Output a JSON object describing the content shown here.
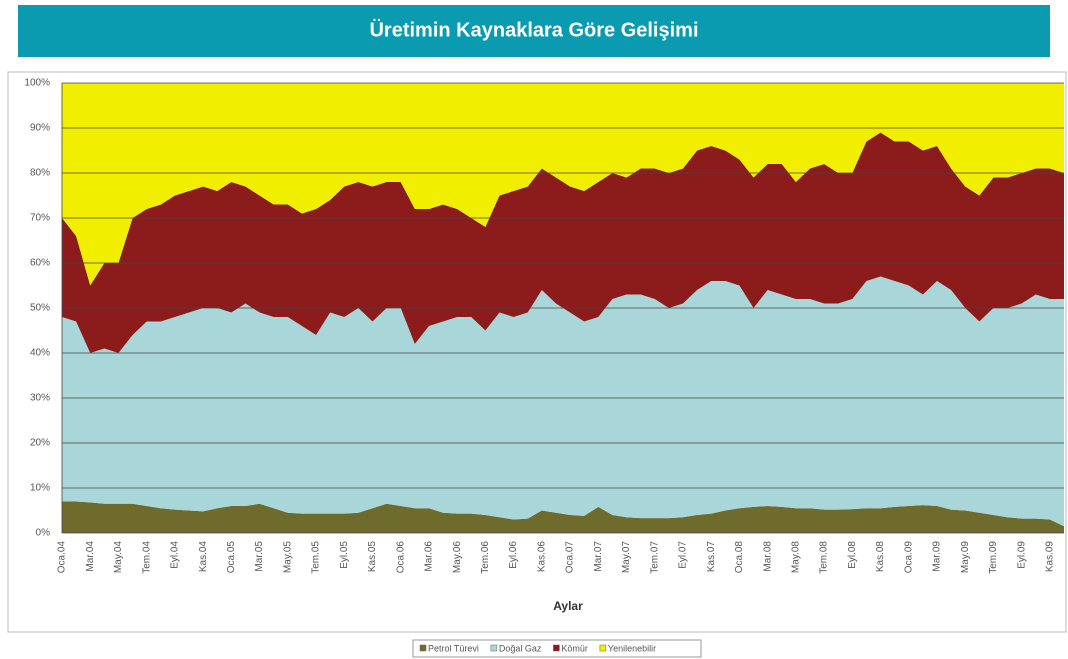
{
  "chart_data": {
    "type": "stacked_area",
    "title": "Üretimin Kaynaklara Göre Gelişimi",
    "x_label": "Aylar",
    "categories": [
      "Oca.04",
      null,
      "Mar.04",
      null,
      "May.04",
      null,
      "Tem.04",
      null,
      "Eyl.04",
      null,
      "Kas.04",
      null,
      "Oca.05",
      null,
      "Mar.05",
      null,
      "May.05",
      null,
      "Tem.05",
      null,
      "Eyl.05",
      null,
      "Kas.05",
      null,
      "Oca.06",
      null,
      "Mar.06",
      null,
      "May.06",
      null,
      "Tem.06",
      null,
      "Eyl.06",
      null,
      "Kas.06",
      null,
      "Oca.07",
      null,
      "Mar.07",
      null,
      "May.07",
      null,
      "Tem.07",
      null,
      "Eyl.07",
      null,
      "Kas.07",
      null,
      "Oca.08",
      null,
      "Mar.08",
      null,
      "May.08",
      null,
      "Tem.08",
      null,
      "Eyl.08",
      null,
      "Kas.08",
      null,
      "Oca.09",
      null,
      "Mar.09",
      null,
      "May.09",
      null,
      "Tem.09",
      null,
      "Eyl.09",
      null,
      "Kas.09",
      null
    ],
    "series": [
      {
        "name": "Petrol Türevi",
        "color": "#6e6b2c",
        "values": [
          7,
          7,
          6.8,
          6.5,
          6.5,
          6.5,
          6,
          5.5,
          5.2,
          5,
          4.8,
          5.5,
          6,
          6,
          6.5,
          5.5,
          4.5,
          4.3,
          4.3,
          4.3,
          4.3,
          4.5,
          5.5,
          6.5,
          6,
          5.5,
          5.5,
          4.5,
          4.3,
          4.3,
          4,
          3.5,
          3,
          3.2,
          5,
          4.5,
          4,
          3.8,
          5.8,
          4,
          3.5,
          3.3,
          3.3,
          3.3,
          3.5,
          4,
          4.3,
          5,
          5.5,
          5.8,
          6,
          5.8,
          5.5,
          5.5,
          5.2,
          5.2,
          5.3,
          5.5,
          5.5,
          5.8,
          6,
          6.2,
          6,
          5.2,
          5,
          4.5,
          4,
          3.5,
          3.2,
          3.2,
          3,
          1.5
        ]
      },
      {
        "name": "Doğal Gaz",
        "color": "#a9d6d8",
        "values": [
          41,
          40,
          33.2,
          34.5,
          33.5,
          37.5,
          41,
          41.5,
          42.8,
          44,
          45.2,
          44.5,
          43,
          45,
          42.5,
          42.5,
          43.5,
          41.7,
          39.7,
          44.7,
          43.7,
          45.5,
          41.5,
          43.5,
          44,
          36.5,
          40.5,
          42.5,
          43.7,
          43.7,
          41,
          45.5,
          45,
          45.8,
          49,
          46.5,
          45,
          43.2,
          42.2,
          48,
          49.5,
          49.7,
          48.7,
          46.7,
          47.5,
          50,
          51.7,
          51,
          49.5,
          44.2,
          48,
          47.2,
          46.5,
          46.5,
          45.8,
          45.8,
          46.7,
          50.5,
          51.5,
          50.2,
          49,
          46.8,
          50,
          48.8,
          45,
          42.5,
          46,
          46.5,
          47.8,
          49.8,
          49,
          50.5
        ]
      },
      {
        "name": "Kömür",
        "color": "#8c1c1c",
        "values": [
          22,
          19,
          15,
          19,
          20,
          26,
          25,
          26,
          27,
          27,
          27,
          26,
          29,
          26,
          26,
          25,
          25,
          25,
          28,
          25,
          29,
          28,
          30,
          28,
          28,
          30,
          26,
          26,
          24,
          22,
          23,
          26,
          28,
          28,
          27,
          28,
          28,
          29,
          30,
          28,
          26,
          28,
          29,
          30,
          30,
          31,
          30,
          29,
          28,
          29,
          28,
          29,
          26,
          29,
          31,
          29,
          28,
          31,
          32,
          31,
          32,
          32,
          30,
          27,
          27,
          28,
          29,
          29,
          29,
          28,
          29,
          28
        ]
      },
      {
        "name": "Yenilenebilir",
        "color": "#f2ee00",
        "values": [
          30,
          34,
          45,
          40,
          40,
          30,
          28,
          27,
          25,
          24,
          23,
          24,
          22,
          23,
          25,
          27,
          27,
          29,
          28,
          26,
          23,
          22,
          23,
          22,
          22,
          28,
          28,
          27,
          28,
          30,
          32,
          25,
          24,
          23,
          19,
          21,
          23,
          24,
          22,
          20,
          21,
          19,
          19,
          20,
          19,
          15,
          14,
          15,
          17,
          21,
          18,
          18,
          22,
          19,
          18,
          20,
          20,
          13,
          11,
          13,
          13,
          15,
          14,
          19,
          23,
          25,
          21,
          21,
          20,
          19,
          19,
          20
        ]
      }
    ],
    "ylim": [
      0,
      100
    ],
    "yticks": [
      {
        "value": 0,
        "label": "0%"
      },
      {
        "value": 10,
        "label": "10%"
      },
      {
        "value": 20,
        "label": "20%"
      },
      {
        "value": 30,
        "label": "30%"
      },
      {
        "value": 40,
        "label": "40%"
      },
      {
        "value": 50,
        "label": "50%"
      },
      {
        "value": 60,
        "label": "60%"
      },
      {
        "value": 70,
        "label": "70%"
      },
      {
        "value": 80,
        "label": "80%"
      },
      {
        "value": 90,
        "label": "90%"
      },
      {
        "value": 100,
        "label": "100%"
      }
    ],
    "grid": true
  }
}
